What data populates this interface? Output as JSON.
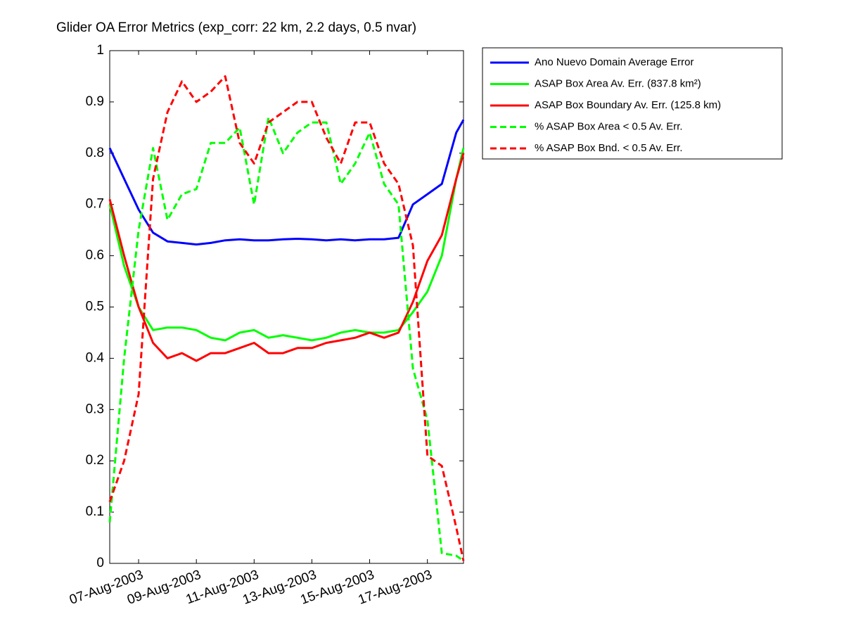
{
  "chart_data": {
    "type": "line",
    "title": "Glider OA Error Metrics (exp_corr: 22 km, 2.2 days, 0.5 nvar)",
    "x": [
      "2003-08-06T00:00",
      "2003-08-06T12:00",
      "2003-08-07T00:00",
      "2003-08-07T12:00",
      "2003-08-08T00:00",
      "2003-08-08T12:00",
      "2003-08-09T00:00",
      "2003-08-09T12:00",
      "2003-08-10T00:00",
      "2003-08-10T12:00",
      "2003-08-11T00:00",
      "2003-08-11T12:00",
      "2003-08-12T00:00",
      "2003-08-12T12:00",
      "2003-08-13T00:00",
      "2003-08-13T12:00",
      "2003-08-14T00:00",
      "2003-08-14T12:00",
      "2003-08-15T00:00",
      "2003-08-15T12:00",
      "2003-08-16T00:00",
      "2003-08-16T12:00",
      "2003-08-17T00:00",
      "2003-08-17T12:00",
      "2003-08-18T00:00",
      "2003-08-18T06:00"
    ],
    "series": [
      {
        "name": "Ano Nuevo Domain Average Error",
        "color": "#0000ff",
        "dash": false,
        "values": [
          0.81,
          0.75,
          0.69,
          0.645,
          0.628,
          0.625,
          0.622,
          0.625,
          0.63,
          0.632,
          0.63,
          0.63,
          0.632,
          0.633,
          0.632,
          0.63,
          0.632,
          0.63,
          0.632,
          0.632,
          0.635,
          0.7,
          0.72,
          0.74,
          0.84,
          0.865
        ]
      },
      {
        "name": "ASAP Box Area Av. Err. (837.8 km²)",
        "color": "#00ff00",
        "dash": false,
        "values": [
          0.7,
          0.58,
          0.5,
          0.455,
          0.46,
          0.46,
          0.455,
          0.44,
          0.435,
          0.45,
          0.455,
          0.44,
          0.445,
          0.44,
          0.435,
          0.44,
          0.45,
          0.455,
          0.45,
          0.45,
          0.455,
          0.49,
          0.53,
          0.6,
          0.75,
          0.81
        ]
      },
      {
        "name": "ASAP Box Boundary Av. Err. (125.8 km)",
        "color": "#ff0000",
        "dash": false,
        "values": [
          0.71,
          0.6,
          0.5,
          0.43,
          0.4,
          0.41,
          0.395,
          0.41,
          0.41,
          0.42,
          0.43,
          0.41,
          0.41,
          0.42,
          0.42,
          0.43,
          0.435,
          0.44,
          0.45,
          0.44,
          0.45,
          0.51,
          0.59,
          0.64,
          0.75,
          0.8
        ]
      },
      {
        "name": "% ASAP Box Area < 0.5 Av. Err.",
        "color": "#00ff00",
        "dash": true,
        "values": [
          0.08,
          0.4,
          0.65,
          0.81,
          0.67,
          0.72,
          0.73,
          0.82,
          0.82,
          0.85,
          0.7,
          0.87,
          0.8,
          0.84,
          0.86,
          0.86,
          0.74,
          0.78,
          0.84,
          0.74,
          0.7,
          0.38,
          0.28,
          0.02,
          0.015,
          0.005
        ]
      },
      {
        "name": "% ASAP Box Bnd. < 0.5 Av. Err.",
        "color": "#ff0000",
        "dash": true,
        "values": [
          0.12,
          0.2,
          0.33,
          0.75,
          0.88,
          0.94,
          0.9,
          0.92,
          0.95,
          0.82,
          0.78,
          0.86,
          0.88,
          0.9,
          0.9,
          0.83,
          0.78,
          0.86,
          0.86,
          0.78,
          0.74,
          0.62,
          0.21,
          0.19,
          0.07,
          0.005
        ]
      }
    ],
    "xlim": [
      "2003-08-06T00:00",
      "2003-08-18T06:00"
    ],
    "xticks": [
      {
        "value": "2003-08-07T00:00",
        "label": "07-Aug-2003"
      },
      {
        "value": "2003-08-09T00:00",
        "label": "09-Aug-2003"
      },
      {
        "value": "2003-08-11T00:00",
        "label": "11-Aug-2003"
      },
      {
        "value": "2003-08-13T00:00",
        "label": "13-Aug-2003"
      },
      {
        "value": "2003-08-15T00:00",
        "label": "15-Aug-2003"
      },
      {
        "value": "2003-08-17T00:00",
        "label": "17-Aug-2003"
      }
    ],
    "ylim": [
      0,
      1
    ],
    "yticks": [
      0,
      0.1,
      0.2,
      0.3,
      0.4,
      0.5,
      0.6,
      0.7,
      0.8,
      0.9,
      1
    ],
    "grid": false,
    "legend": "outside-right"
  }
}
